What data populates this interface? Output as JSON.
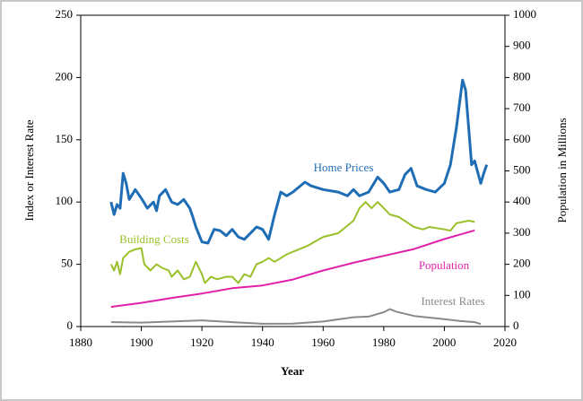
{
  "chart_data": {
    "type": "line",
    "xlabel": "Year",
    "ylabel": "Index or Interest Rate",
    "y2label": "Population in Millions",
    "xlim": [
      1880,
      2020
    ],
    "xticks": [
      1880,
      1900,
      1920,
      1940,
      1960,
      1980,
      2000,
      2020
    ],
    "ylim": [
      0,
      250
    ],
    "yticks": [
      0,
      50,
      100,
      150,
      200,
      250
    ],
    "y2lim": [
      0,
      1000
    ],
    "y2ticks": [
      0,
      100,
      200,
      300,
      400,
      500,
      600,
      700,
      800,
      900,
      1000
    ],
    "series": [
      {
        "name": "Home Prices",
        "color": "#1f6db5",
        "x": [
          1890,
          1891,
          1892,
          1893,
          1894,
          1895,
          1896,
          1898,
          1900,
          1902,
          1904,
          1905,
          1906,
          1908,
          1910,
          1912,
          1914,
          1916,
          1917,
          1918,
          1920,
          1922,
          1924,
          1926,
          1928,
          1930,
          1932,
          1934,
          1936,
          1938,
          1940,
          1942,
          1944,
          1946,
          1948,
          1950,
          1952,
          1954,
          1956,
          1960,
          1965,
          1968,
          1970,
          1972,
          1975,
          1978,
          1980,
          1982,
          1985,
          1987,
          1989,
          1991,
          1994,
          1997,
          2000,
          2002,
          2004,
          2006,
          2007,
          2008,
          2009,
          2010,
          2012,
          2013,
          2014
        ],
        "values": [
          100,
          90,
          98,
          95,
          123,
          115,
          102,
          110,
          103,
          95,
          100,
          93,
          105,
          110,
          100,
          98,
          102,
          95,
          88,
          80,
          68,
          67,
          78,
          77,
          73,
          78,
          72,
          70,
          75,
          80,
          78,
          70,
          90,
          108,
          105,
          108,
          112,
          116,
          113,
          110,
          108,
          105,
          110,
          105,
          108,
          120,
          115,
          108,
          110,
          122,
          127,
          113,
          110,
          108,
          115,
          130,
          160,
          198,
          190,
          160,
          130,
          133,
          115,
          123,
          130
        ]
      },
      {
        "name": "Building Costs",
        "color": "#9ac02a",
        "x": [
          1890,
          1891,
          1892,
          1893,
          1894,
          1896,
          1898,
          1900,
          1901,
          1903,
          1905,
          1907,
          1909,
          1910,
          1912,
          1914,
          1916,
          1918,
          1920,
          1921,
          1923,
          1925,
          1928,
          1930,
          1932,
          1934,
          1936,
          1938,
          1940,
          1942,
          1944,
          1946,
          1948,
          1950,
          1952,
          1955,
          1960,
          1965,
          1970,
          1972,
          1974,
          1976,
          1978,
          1980,
          1982,
          1985,
          1990,
          1993,
          1995,
          2000,
          2002,
          2004,
          2006,
          2008,
          2010
        ],
        "values": [
          50,
          45,
          52,
          42,
          55,
          60,
          62,
          63,
          50,
          45,
          50,
          47,
          45,
          40,
          45,
          38,
          40,
          52,
          42,
          35,
          40,
          38,
          40,
          40,
          35,
          42,
          40,
          50,
          52,
          55,
          52,
          55,
          58,
          60,
          62,
          65,
          72,
          75,
          85,
          95,
          100,
          95,
          100,
          95,
          90,
          88,
          80,
          78,
          80,
          78,
          77,
          83,
          84,
          85,
          84
        ]
      },
      {
        "name": "Population",
        "color": "#e020a8",
        "axis": "y2",
        "x": [
          1890,
          1900,
          1910,
          1920,
          1930,
          1940,
          1950,
          1960,
          1970,
          1980,
          1990,
          2000,
          2010
        ],
        "values": [
          63,
          76,
          92,
          106,
          123,
          132,
          151,
          180,
          205,
          227,
          249,
          281,
          309
        ]
      },
      {
        "name": "Interest Rates",
        "color": "#8a8a8a",
        "x": [
          1890,
          1900,
          1910,
          1920,
          1930,
          1940,
          1950,
          1960,
          1970,
          1975,
          1980,
          1982,
          1984,
          1990,
          2000,
          2005,
          2010,
          2012
        ],
        "values": [
          3.5,
          3.2,
          4,
          5,
          3.5,
          2.2,
          2.3,
          4,
          7.5,
          8,
          11.5,
          14,
          12,
          8.5,
          6,
          4.5,
          3.5,
          2
        ]
      }
    ]
  }
}
